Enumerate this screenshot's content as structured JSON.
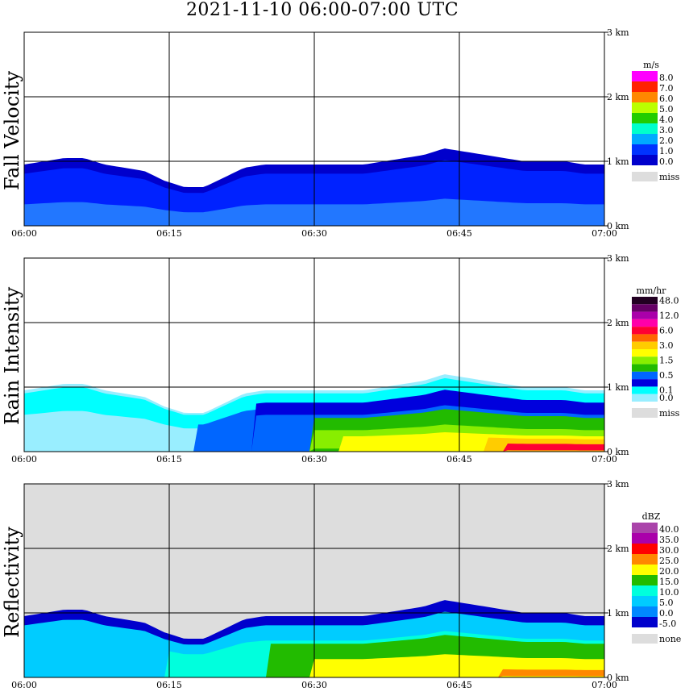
{
  "title": "2021-11-10   06:00-07:00 UTC",
  "time_ticks": [
    "06:00",
    "06:15",
    "06:30",
    "06:45",
    "07:00"
  ],
  "height_ticks": [
    "0 km",
    "1 km",
    "2 km",
    "3 km"
  ],
  "panels": [
    {
      "label": "Fall Velocity",
      "legend_unit": "m/s",
      "legend": [
        {
          "label": "8.0",
          "color": "#ff00ff"
        },
        {
          "label": "7.0",
          "color": "#ff2200"
        },
        {
          "label": "6.0",
          "color": "#ff8800"
        },
        {
          "label": "5.0",
          "color": "#bbff00"
        },
        {
          "label": "4.0",
          "color": "#22cc00"
        },
        {
          "label": "3.0",
          "color": "#00ffcc"
        },
        {
          "label": "2.0",
          "color": "#00aaff"
        },
        {
          "label": "1.0",
          "color": "#0033ff"
        },
        {
          "label": "0.0",
          "color": "#0000cc"
        }
      ],
      "missing_label": "miss",
      "missing_color": "#dddddd"
    },
    {
      "label": "Rain Intensity",
      "legend_unit": "mm/hr",
      "legend": [
        {
          "label": "48.0",
          "color": "#220022"
        },
        {
          "label": "",
          "color": "#660066"
        },
        {
          "label": "12.0",
          "color": "#aa00aa"
        },
        {
          "label": "",
          "color": "#ff00aa"
        },
        {
          "label": "6.0",
          "color": "#ff0033"
        },
        {
          "label": "",
          "color": "#ff6600"
        },
        {
          "label": "3.0",
          "color": "#ffcc00"
        },
        {
          "label": "",
          "color": "#ffff00"
        },
        {
          "label": "1.5",
          "color": "#88ee00"
        },
        {
          "label": "",
          "color": "#22bb00"
        },
        {
          "label": "0.5",
          "color": "#0066ff"
        },
        {
          "label": "",
          "color": "#0000dd"
        },
        {
          "label": "0.1",
          "color": "#00ffff"
        },
        {
          "label": "0.0",
          "color": "#99eeff"
        }
      ],
      "missing_label": "miss",
      "missing_color": "#dddddd"
    },
    {
      "label": "Reflectivity",
      "legend_unit": "dBZ",
      "legend": [
        {
          "label": "40.0",
          "color": "#aa44aa"
        },
        {
          "label": "35.0",
          "color": "#aa00aa"
        },
        {
          "label": "30.0",
          "color": "#ff0000"
        },
        {
          "label": "25.0",
          "color": "#ff8800"
        },
        {
          "label": "20.0",
          "color": "#ffff00"
        },
        {
          "label": "15.0",
          "color": "#22bb00"
        },
        {
          "label": "10.0",
          "color": "#00ffdd"
        },
        {
          "label": "5.0",
          "color": "#00ccff"
        },
        {
          "label": "0.0",
          "color": "#0088ff"
        },
        {
          "label": "-5.0",
          "color": "#0000cc"
        }
      ],
      "missing_label": "none",
      "missing_color": "#dddddd"
    }
  ],
  "chart_data": {
    "type": "heatmap",
    "x_axis": {
      "range": [
        "06:00",
        "07:00"
      ],
      "ticks": [
        "06:00",
        "06:15",
        "06:30",
        "06:45",
        "07:00"
      ]
    },
    "y_axis": {
      "range_km": [
        0,
        3
      ],
      "ticks": [
        "0 km",
        "1 km",
        "2 km",
        "3 km"
      ]
    },
    "grid": true,
    "legend_position": "right",
    "panels": [
      {
        "name": "Fall Velocity",
        "unit": "m/s",
        "echo_top_km": [
          0.95,
          1.0,
          1.05,
          1.05,
          0.95,
          0.9,
          0.85,
          0.7,
          0.6,
          0.6,
          0.75,
          0.9,
          0.95,
          0.95,
          0.95,
          0.95,
          0.95,
          0.95,
          1.0,
          1.05,
          1.1,
          1.2,
          1.15,
          1.1,
          1.05,
          1.0,
          1.0,
          1.0,
          0.95,
          0.95
        ],
        "dominant_value": "1.0-2.0"
      },
      {
        "name": "Rain Intensity",
        "unit": "mm/hr",
        "echo_top_km": [
          0.95,
          1.0,
          1.05,
          1.05,
          0.95,
          0.9,
          0.85,
          0.7,
          0.6,
          0.6,
          0.75,
          0.9,
          0.95,
          0.95,
          0.95,
          0.95,
          0.95,
          0.95,
          1.0,
          1.05,
          1.1,
          1.2,
          1.15,
          1.1,
          1.05,
          1.0,
          1.0,
          1.0,
          0.95,
          0.95
        ],
        "max_value": "6.0"
      },
      {
        "name": "Reflectivity",
        "unit": "dBZ",
        "echo_top_km": [
          0.95,
          1.0,
          1.05,
          1.05,
          0.95,
          0.9,
          0.85,
          0.7,
          0.6,
          0.6,
          0.75,
          0.9,
          0.95,
          0.95,
          0.95,
          0.95,
          0.95,
          0.95,
          1.0,
          1.05,
          1.1,
          1.2,
          1.15,
          1.1,
          1.05,
          1.0,
          1.0,
          1.0,
          0.95,
          0.95
        ],
        "max_value": "25.0"
      }
    ]
  }
}
